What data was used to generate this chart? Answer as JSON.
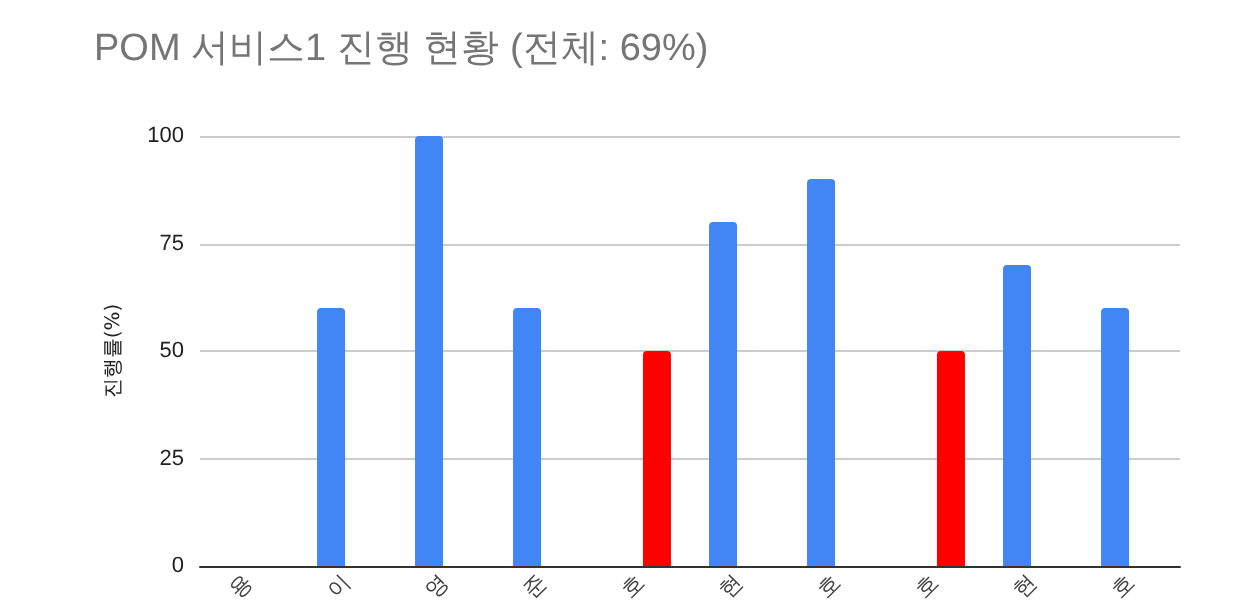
{
  "chart_data": {
    "type": "bar",
    "title": "POM 서비스1 진행 현황 (전체: 69%)",
    "ylabel": "진행률(%)",
    "categories": [
      "용",
      "이",
      "영",
      "준",
      "호",
      "현",
      "호",
      "호",
      "현",
      "호"
    ],
    "series": [
      {
        "color": "#4285f4",
        "values": [
          null,
          60,
          100,
          60,
          null,
          80,
          90,
          null,
          70,
          60
        ]
      },
      {
        "color": "#ff0000",
        "values": [
          null,
          null,
          null,
          null,
          50,
          null,
          null,
          50,
          null,
          null
        ]
      }
    ],
    "ylim": [
      0,
      100
    ],
    "yticks": [
      0,
      25,
      50,
      75,
      100
    ],
    "grid": "y"
  }
}
